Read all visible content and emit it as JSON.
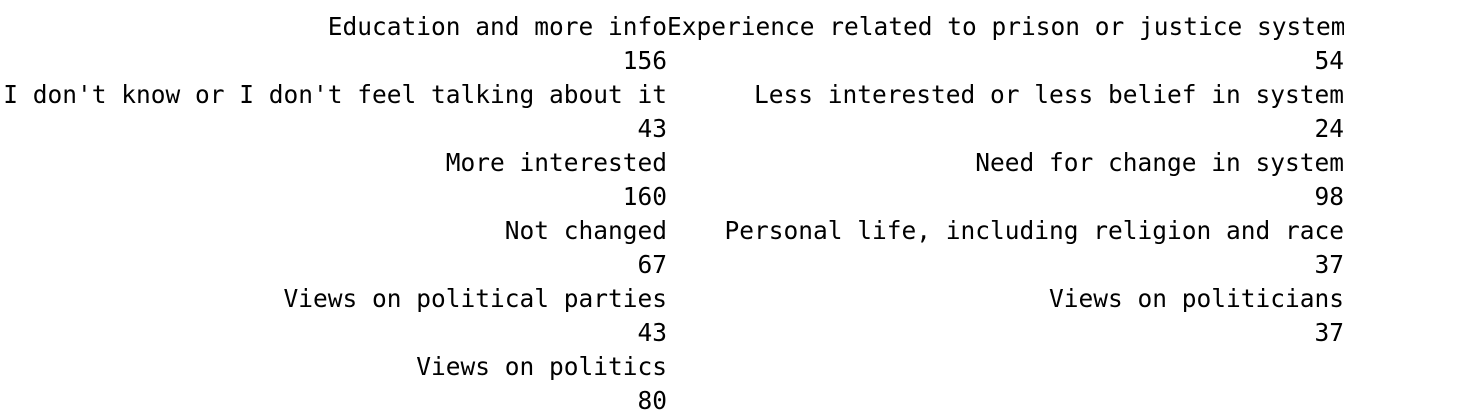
{
  "table": {
    "rows": [
      [
        "Education and more info",
        "Experience related to prison or justice system"
      ],
      [
        "156",
        "54"
      ],
      [
        "I don't know or I don't feel talking about it",
        "Less interested or less belief in system"
      ],
      [
        "43",
        "24"
      ],
      [
        "More interested",
        "Need for change in system"
      ],
      [
        "160",
        "98"
      ],
      [
        "Not changed",
        "Personal life, including religion and race"
      ],
      [
        "67",
        "37"
      ],
      [
        "Views on political parties",
        "Views on politicians"
      ],
      [
        "43",
        "37"
      ],
      [
        "Views on politics",
        ""
      ],
      [
        "80",
        ""
      ]
    ]
  }
}
